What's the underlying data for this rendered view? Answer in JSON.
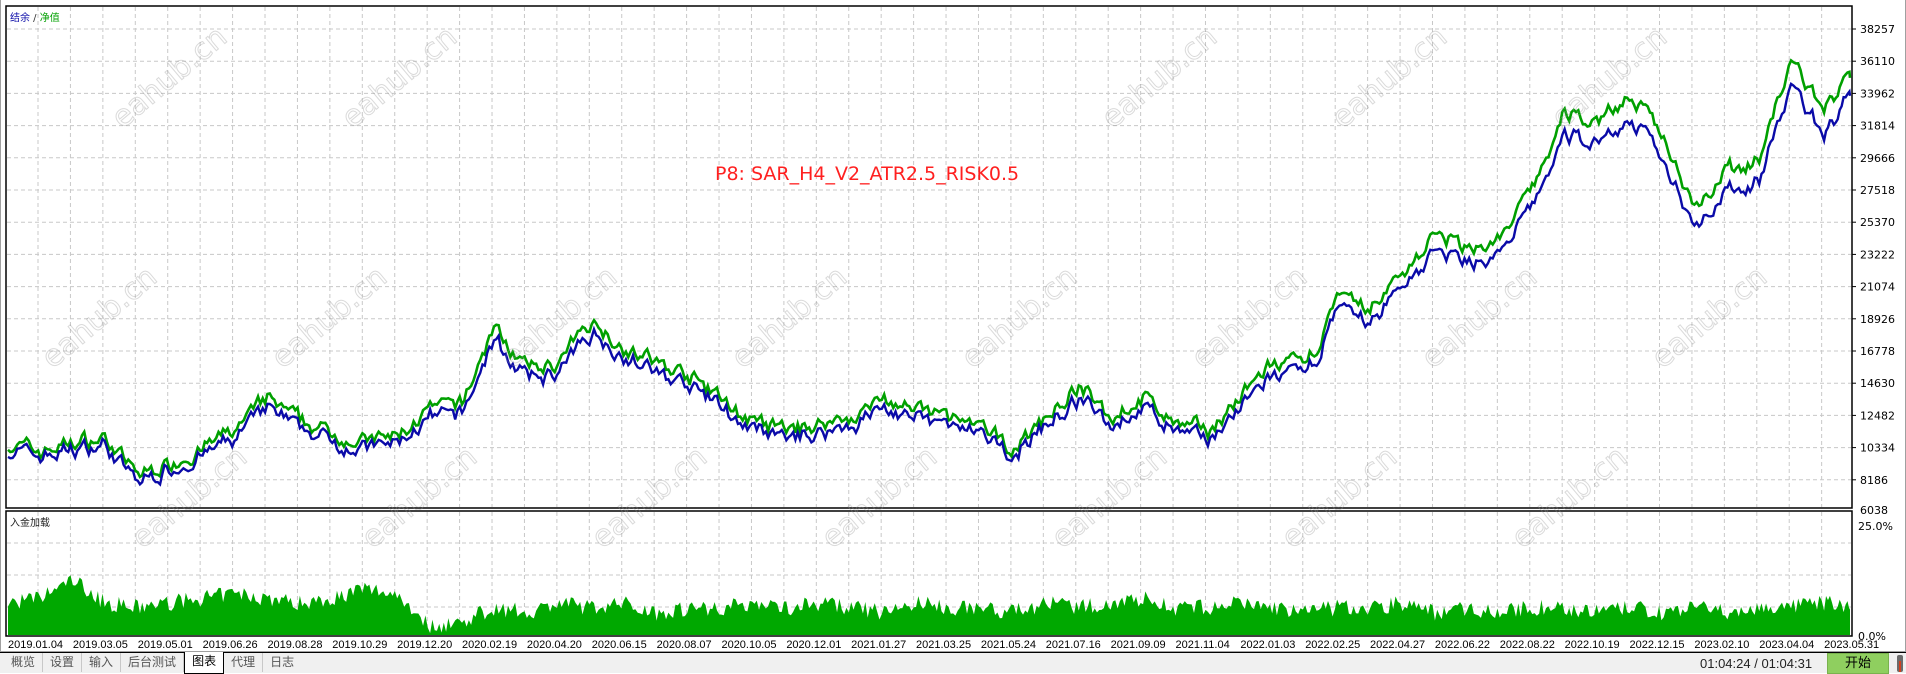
{
  "legend": {
    "balance_label": "结余",
    "separator": " / ",
    "equity_label": "净值"
  },
  "title": "P8: SAR_H4_V2_ATR2.5_RISK0.5",
  "subchart_label": "入金加载",
  "watermark": "eahub.cn",
  "colors": {
    "balance": "#0a0aa8",
    "equity": "#00a000",
    "load": "#00a800",
    "title": "#ff2020",
    "grid": "#c8c8c8"
  },
  "chart_data": [
    {
      "type": "line",
      "ylim": [
        6038,
        38257
      ],
      "y_ticks": [
        "38257",
        "36110",
        "33962",
        "31814",
        "29666",
        "27518",
        "25370",
        "23222",
        "21074",
        "18926",
        "16778",
        "14630",
        "12482",
        "10334",
        "8186",
        "6038"
      ],
      "x_ticks": [
        "2019.01.04",
        "2019.03.05",
        "2019.05.01",
        "2019.06.26",
        "2019.08.28",
        "2019.10.29",
        "2019.12.20",
        "2020.02.19",
        "2020.04.20",
        "2020.06.15",
        "2020.08.07",
        "2020.10.05",
        "2020.12.01",
        "2021.01.27",
        "2021.03.25",
        "2021.05.24",
        "2021.07.16",
        "2021.09.09",
        "2021.11.04",
        "2022.01.03",
        "2022.02.25",
        "2022.04.27",
        "2022.06.22",
        "2022.08.22",
        "2022.10.19",
        "2022.12.15",
        "2023.02.10",
        "2023.04.04",
        "2023.05.31"
      ],
      "grid": true,
      "x": [
        "2019.01.04",
        "2019.02.03",
        "2019.03.05",
        "2019.04.02",
        "2019.05.01",
        "2019.05.28",
        "2019.06.26",
        "2019.07.27",
        "2019.08.28",
        "2019.09.28",
        "2019.10.29",
        "2019.11.24",
        "2019.12.20",
        "2020.01.20",
        "2020.02.19",
        "2020.03.20",
        "2020.04.20",
        "2020.05.18",
        "2020.06.15",
        "2020.07.11",
        "2020.08.07",
        "2020.09.06",
        "2020.10.05",
        "2020.11.03",
        "2020.12.01",
        "2020.12.29",
        "2021.01.27",
        "2021.02.25",
        "2021.03.25",
        "2021.04.24",
        "2021.05.24",
        "2021.06.20",
        "2021.07.16",
        "2021.08.13",
        "2021.09.09",
        "2021.10.07",
        "2021.11.04",
        "2021.12.04",
        "2022.01.03",
        "2022.01.29",
        "2022.02.25",
        "2022.03.27",
        "2022.04.27",
        "2022.05.25",
        "2022.06.22",
        "2022.07.22",
        "2022.08.22",
        "2022.09.20",
        "2022.10.19",
        "2022.11.16",
        "2022.12.15",
        "2023.01.12",
        "2023.02.10",
        "2023.03.09",
        "2023.04.04",
        "2023.05.02",
        "2023.05.31",
        "2023.06.24"
      ],
      "series": [
        {
          "name": "净值",
          "values": [
            10500,
            10000,
            10600,
            10900,
            8400,
            9200,
            10200,
            11400,
            13500,
            12000,
            11200,
            10600,
            11000,
            12800,
            13100,
            18300,
            15500,
            15900,
            18800,
            17000,
            15900,
            15000,
            13500,
            11800,
            11400,
            11800,
            12300,
            13500,
            12700,
            12300,
            11400,
            10200,
            12300,
            14300,
            12300,
            13600,
            11800,
            11400,
            13500,
            15900,
            15500,
            20000,
            19500,
            21900,
            24400,
            23600,
            24000,
            27500,
            32500,
            32100,
            33700,
            31300,
            26500,
            28800,
            29500,
            36000,
            32900,
            35000
          ]
        },
        {
          "name": "结余",
          "values": [
            10300,
            9800,
            10300,
            10600,
            8100,
            8900,
            9900,
            11000,
            13000,
            11600,
            10900,
            10300,
            10700,
            12300,
            12600,
            17600,
            15000,
            15400,
            18200,
            16500,
            15400,
            14500,
            13100,
            11400,
            11000,
            11400,
            11900,
            13000,
            12300,
            11900,
            11000,
            9900,
            11900,
            13700,
            11900,
            13100,
            11400,
            11000,
            13000,
            15300,
            15000,
            19300,
            18800,
            21200,
            23500,
            22800,
            23200,
            26400,
            31200,
            30800,
            32300,
            29900,
            25300,
            27500,
            28200,
            34600,
            31300,
            33800
          ]
        }
      ]
    },
    {
      "type": "area",
      "ylabel": "入金加载",
      "ylim": [
        0,
        25
      ],
      "y_ticks": [
        "25.0%",
        "0.0%"
      ],
      "series": [
        {
          "name": "入金加载",
          "values": [
            7,
            8,
            12,
            7,
            6,
            7,
            8,
            9,
            8,
            7,
            8,
            10,
            9,
            2,
            3,
            6,
            5,
            7,
            6,
            7,
            5,
            6,
            6,
            7,
            6,
            7,
            6,
            5,
            7,
            6,
            6,
            5,
            7,
            6,
            7,
            8,
            6,
            6,
            7,
            6,
            5,
            6,
            6,
            7,
            5,
            6,
            5,
            6,
            6,
            5,
            6,
            5,
            6,
            5,
            6,
            6,
            7,
            6
          ]
        }
      ]
    }
  ],
  "tabs": [
    {
      "label": "概览",
      "active": false
    },
    {
      "label": "设置",
      "active": false
    },
    {
      "label": "输入",
      "active": false
    },
    {
      "label": "后台测试",
      "active": false
    },
    {
      "label": "图表",
      "active": true
    },
    {
      "label": "代理",
      "active": false
    },
    {
      "label": "日志",
      "active": false
    }
  ],
  "status": {
    "time": "01:04:24 / 01:04:31",
    "start_button": "开始"
  }
}
